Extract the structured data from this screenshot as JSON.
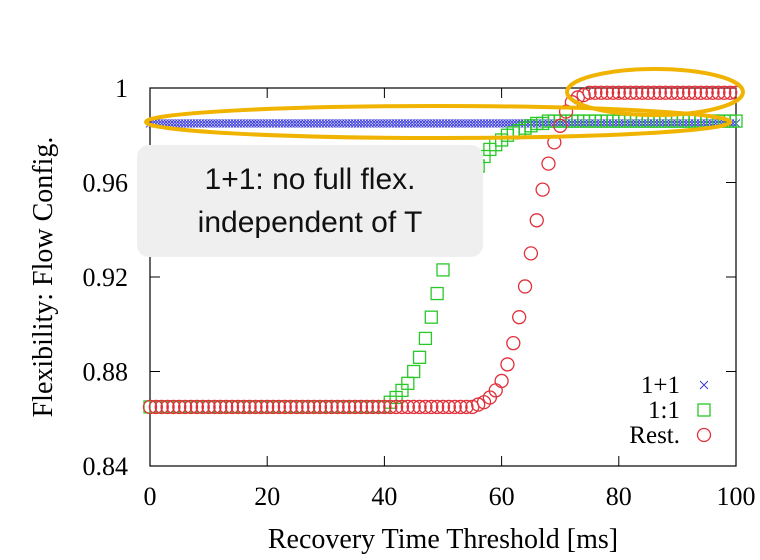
{
  "chart_data": {
    "type": "scatter",
    "title": "",
    "xlabel": "Recovery Time Threshold [ms]",
    "ylabel": "Flexibility: Flow Config.",
    "xlim": [
      0,
      100
    ],
    "ylim": [
      0.84,
      1.0
    ],
    "x_ticks": [
      0,
      20,
      40,
      60,
      80,
      100
    ],
    "y_ticks": [
      0.84,
      0.88,
      0.92,
      0.96,
      1.0
    ],
    "x_tick_labels": [
      "0",
      "20",
      "40",
      "60",
      "80",
      "100"
    ],
    "y_tick_labels": [
      "0.84",
      "0.88",
      "0.92",
      "0.96",
      "1"
    ],
    "grid": false,
    "legend_position": "bottom-right",
    "series": [
      {
        "name": "1+1",
        "marker": "x",
        "color": "#3a3adb",
        "x": [
          0,
          100
        ],
        "y": [
          0.985,
          0.985
        ],
        "x_step": 0.5
      },
      {
        "name": "1:1",
        "marker": "square",
        "color": "#29c829",
        "x": [
          0,
          40,
          41,
          42,
          43,
          44,
          45,
          46,
          47,
          48,
          49,
          50,
          51,
          52,
          53,
          54,
          55,
          56,
          57,
          58,
          59,
          60,
          61,
          62,
          63,
          64,
          65,
          66,
          67,
          68,
          69,
          70,
          72,
          75,
          80,
          85,
          90,
          95,
          100
        ],
        "y": [
          0.865,
          0.865,
          0.867,
          0.869,
          0.872,
          0.875,
          0.88,
          0.886,
          0.894,
          0.903,
          0.913,
          0.923,
          0.932,
          0.941,
          0.949,
          0.956,
          0.962,
          0.967,
          0.971,
          0.974,
          0.976,
          0.978,
          0.98,
          0.981,
          0.982,
          0.983,
          0.984,
          0.985,
          0.985,
          0.986,
          0.986,
          0.986,
          0.986,
          0.986,
          0.986,
          0.986,
          0.986,
          0.986,
          0.986
        ]
      },
      {
        "name": "Rest.",
        "marker": "circle",
        "color": "#e0303a",
        "x": [
          0,
          55,
          56,
          57,
          58,
          59,
          60,
          61,
          62,
          63,
          64,
          65,
          66,
          67,
          68,
          69,
          70,
          71,
          72,
          73,
          74,
          75,
          80,
          85,
          90,
          95,
          100
        ],
        "y": [
          0.865,
          0.865,
          0.866,
          0.867,
          0.869,
          0.872,
          0.876,
          0.883,
          0.892,
          0.903,
          0.916,
          0.93,
          0.944,
          0.957,
          0.968,
          0.977,
          0.984,
          0.99,
          0.994,
          0.996,
          0.997,
          0.998,
          0.998,
          0.998,
          0.998,
          0.998,
          0.998
        ]
      }
    ]
  },
  "annotation": {
    "line1": "1+1: no full flex.",
    "line2": "independent of T"
  },
  "highlight_color": "#f0b400"
}
